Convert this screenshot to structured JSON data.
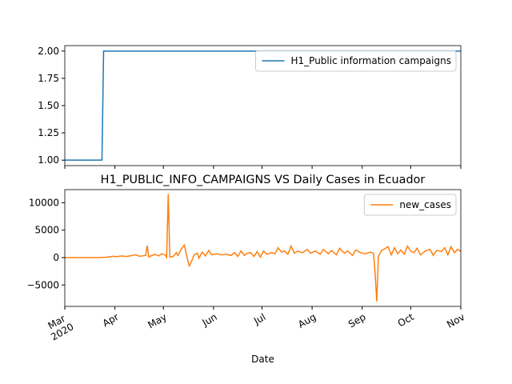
{
  "chart_data": [
    {
      "type": "line",
      "x": [
        0,
        23,
        24,
        245
      ],
      "series": [
        {
          "name": "H1_Public information campaigns",
          "color": "#1f77b4",
          "values": [
            1,
            1,
            2,
            2
          ]
        }
      ],
      "xlim": [
        0,
        245
      ],
      "ylim": [
        0.95,
        2.05
      ],
      "yticks": [
        {
          "value": 1,
          "label": "1.00"
        },
        {
          "value": 1.25,
          "label": "1.25"
        },
        {
          "value": 1.5,
          "label": "1.50"
        },
        {
          "value": 1.75,
          "label": "1.75"
        },
        {
          "value": 2,
          "label": "2.00"
        }
      ],
      "legend": "upper right"
    },
    {
      "type": "line",
      "title": "H1_PUBLIC_INFO_CAMPAIGNS VS Daily Cases in Ecuador",
      "xlabel": "Date",
      "x": [
        0,
        5,
        10,
        15,
        20,
        25,
        28,
        30,
        32,
        35,
        38,
        41,
        44,
        46,
        48,
        50,
        51,
        52,
        54,
        56,
        58,
        60,
        62,
        63,
        64,
        65,
        67,
        69,
        70,
        72,
        74,
        75,
        77,
        78,
        80,
        82,
        83,
        85,
        87,
        89,
        91,
        94,
        97,
        100,
        103,
        105,
        107,
        109,
        111,
        113,
        115,
        117,
        119,
        121,
        123,
        125,
        128,
        130,
        132,
        134,
        136,
        138,
        140,
        142,
        144,
        147,
        150,
        152,
        155,
        158,
        160,
        163,
        165,
        168,
        170,
        173,
        175,
        178,
        180,
        183,
        186,
        189,
        191,
        192,
        193,
        194,
        196,
        198,
        200,
        202,
        204,
        206,
        208,
        210,
        212,
        214,
        216,
        218,
        220,
        223,
        226,
        228,
        230,
        233,
        235,
        237,
        239,
        241,
        243,
        245
      ],
      "series": [
        {
          "name": "new_cases",
          "color": "#ff7f0e",
          "values": [
            0,
            0,
            0,
            0,
            0,
            50,
            150,
            250,
            150,
            300,
            200,
            350,
            500,
            250,
            300,
            400,
            2200,
            100,
            400,
            600,
            300,
            700,
            500,
            50,
            11600,
            100,
            200,
            900,
            400,
            1500,
            2300,
            800,
            -1500,
            -1000,
            500,
            800,
            -100,
            1000,
            300,
            1300,
            500,
            700,
            500,
            600,
            400,
            900,
            200,
            1200,
            400,
            800,
            900,
            200,
            1100,
            100,
            1200,
            600,
            900,
            700,
            1800,
            1000,
            1200,
            600,
            2100,
            800,
            1200,
            900,
            1500,
            800,
            1200,
            600,
            1500,
            700,
            1300,
            500,
            1700,
            800,
            1200,
            400,
            1400,
            900,
            700,
            1000,
            800,
            -3000,
            -8000,
            200,
            1300,
            1600,
            2000,
            500,
            1800,
            700,
            1400,
            600,
            2100,
            1200,
            900,
            1700,
            500,
            1200,
            1500,
            400,
            1300,
            1100,
            1800,
            500,
            2000,
            900,
            1500,
            1100
          ]
        }
      ],
      "xlim": [
        0,
        245
      ],
      "xticks": [
        {
          "value": 0,
          "label": "Mar\n2020"
        },
        {
          "value": 31,
          "label": "Apr"
        },
        {
          "value": 61,
          "label": "May"
        },
        {
          "value": 92,
          "label": "Jun"
        },
        {
          "value": 122,
          "label": "Jul"
        },
        {
          "value": 153,
          "label": "Aug"
        },
        {
          "value": 184,
          "label": "Sep"
        },
        {
          "value": 214,
          "label": "Oct"
        },
        {
          "value": 245,
          "label": "Nov"
        }
      ],
      "ylim": [
        -8900,
        12400
      ],
      "yticks": [
        {
          "value": -5000,
          "label": "−5000"
        },
        0,
        5000,
        10000
      ],
      "legend": "upper right"
    }
  ]
}
